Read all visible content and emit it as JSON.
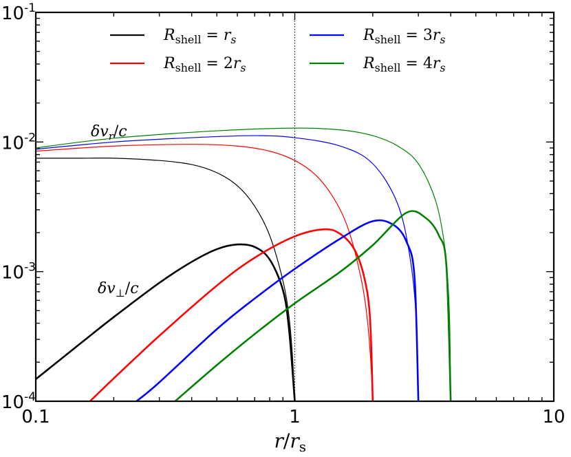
{
  "chart_data": {
    "type": "line",
    "title": "",
    "xlabel": "r/r_s",
    "ylabel": "",
    "xscale": "log",
    "yscale": "log",
    "xlim": [
      0.1,
      10
    ],
    "ylim": [
      0.0001,
      0.1
    ],
    "grid": false,
    "legend_placement": "top",
    "xticks": [
      {
        "value": 0.1,
        "label": "0.1"
      },
      {
        "value": 1,
        "label": "1"
      },
      {
        "value": 10,
        "label": "10"
      }
    ],
    "yticks": [
      {
        "value": 0.0001,
        "base": "10",
        "exp": "-4"
      },
      {
        "value": 0.001,
        "base": "10",
        "exp": "-3"
      },
      {
        "value": 0.01,
        "base": "10",
        "exp": "-2"
      },
      {
        "value": 0.1,
        "base": "10",
        "exp": "-1"
      }
    ],
    "reference_line": {
      "x": 1,
      "style": "dotted",
      "color": "#000000"
    },
    "annotations": {
      "radial": {
        "text": "δv_r/c"
      },
      "perp": {
        "text": "δv_⊥/c"
      }
    },
    "legend": [
      {
        "label": "R_shell = r_s",
        "color": "#000000"
      },
      {
        "label": "R_shell = 2r_s",
        "color": "#ff0000"
      },
      {
        "label": "R_shell = 3r_s",
        "color": "#0000ff"
      },
      {
        "label": "R_shell = 4r_s",
        "color": "#008000"
      }
    ],
    "series": [
      {
        "name": "R_shell = r_s",
        "quantity": "δv_r/c",
        "color": "#000000",
        "x": [
          0.1,
          0.15,
          0.2,
          0.3,
          0.4,
          0.5,
          0.6,
          0.7,
          0.8,
          0.9,
          0.95,
          0.98,
          1.0
        ],
        "y": [
          0.0075,
          0.0075,
          0.0075,
          0.0072,
          0.0067,
          0.0058,
          0.0046,
          0.0032,
          0.0019,
          0.00085,
          0.00045,
          0.00022,
          0.0001
        ]
      },
      {
        "name": "R_shell = 2r_s",
        "quantity": "δv_r/c",
        "color": "#ff0000",
        "x": [
          0.1,
          0.2,
          0.4,
          0.6,
          0.8,
          1.0,
          1.2,
          1.4,
          1.6,
          1.8,
          1.9,
          1.96,
          2.0
        ],
        "y": [
          0.0085,
          0.0093,
          0.0096,
          0.0093,
          0.0085,
          0.0072,
          0.0056,
          0.0038,
          0.0022,
          0.0009,
          0.00045,
          0.00022,
          0.0001
        ]
      },
      {
        "name": "R_shell = 3r_s",
        "quantity": "δv_r/c",
        "color": "#0000ff",
        "x": [
          0.1,
          0.2,
          0.4,
          0.7,
          1.0,
          1.5,
          2.0,
          2.5,
          2.8,
          2.95,
          3.0
        ],
        "y": [
          0.0088,
          0.01,
          0.0108,
          0.0112,
          0.0108,
          0.0093,
          0.0068,
          0.0033,
          0.0012,
          0.0004,
          0.0001
        ]
      },
      {
        "name": "R_shell = 4r_s",
        "quantity": "δv_r/c",
        "color": "#008000",
        "x": [
          0.1,
          0.2,
          0.5,
          1.0,
          1.5,
          2.0,
          2.5,
          3.0,
          3.5,
          3.8,
          3.95,
          4.0
        ],
        "y": [
          0.009,
          0.0107,
          0.0122,
          0.0128,
          0.0124,
          0.0112,
          0.0093,
          0.0068,
          0.0035,
          0.0015,
          0.0005,
          0.0001
        ]
      },
      {
        "name": "R_shell = r_s",
        "quantity": "δv_⊥/c",
        "color": "#000000",
        "x": [
          0.1,
          0.15,
          0.2,
          0.3,
          0.4,
          0.5,
          0.6,
          0.7,
          0.8,
          0.9,
          0.95,
          1.0
        ],
        "y": [
          0.000148,
          0.000283,
          0.000446,
          0.00082,
          0.00119,
          0.00149,
          0.00162,
          0.00155,
          0.00124,
          0.00072,
          0.00036,
          0.0001
        ]
      },
      {
        "name": "R_shell = 2r_s",
        "quantity": "δv_⊥/c",
        "color": "#ff0000",
        "x": [
          0.162,
          0.2,
          0.3,
          0.5,
          0.7,
          1.0,
          1.3,
          1.5,
          1.7,
          1.85,
          1.95,
          2.0
        ],
        "y": [
          0.0001,
          0.00015,
          0.00032,
          0.00078,
          0.00128,
          0.00187,
          0.00212,
          0.00195,
          0.00148,
          0.00092,
          0.00045,
          0.0001
        ]
      },
      {
        "name": "R_shell = 3r_s",
        "quantity": "δv_⊥/c",
        "color": "#0000ff",
        "x": [
          0.245,
          0.3,
          0.5,
          0.7,
          1.0,
          1.5,
          2.0,
          2.4,
          2.7,
          2.9,
          3.0
        ],
        "y": [
          0.0001,
          0.00014,
          0.00036,
          0.00062,
          0.00105,
          0.0018,
          0.00245,
          0.0023,
          0.0017,
          0.0009,
          0.0001
        ]
      },
      {
        "name": "R_shell = 4r_s",
        "quantity": "δv_⊥/c",
        "color": "#008000",
        "x": [
          0.345,
          0.5,
          0.7,
          1.0,
          1.5,
          2.0,
          2.7,
          3.2,
          3.6,
          3.85,
          4.0
        ],
        "y": [
          0.0001,
          0.00019,
          0.00033,
          0.00057,
          0.001,
          0.0016,
          0.00285,
          0.0026,
          0.0019,
          0.0011,
          0.0001
        ]
      }
    ]
  }
}
